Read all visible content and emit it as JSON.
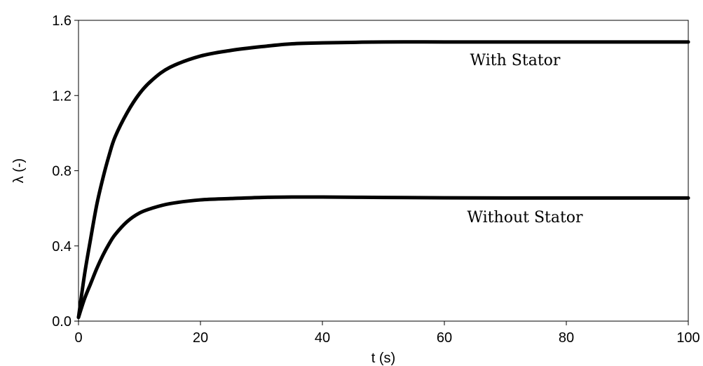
{
  "chart_data": {
    "type": "line",
    "xlabel": "t (s)",
    "ylabel": "λ (-)",
    "xlim": [
      0,
      100
    ],
    "ylim": [
      0.0,
      1.6
    ],
    "x_ticks": [
      0,
      20,
      40,
      60,
      80,
      100
    ],
    "x_tick_labels": [
      "0",
      "20",
      "40",
      "60",
      "80",
      "100"
    ],
    "y_ticks": [
      0.0,
      0.4,
      0.8,
      1.2,
      1.6
    ],
    "y_tick_labels": [
      "0.0",
      "0.4",
      "0.8",
      "1.2",
      "1.6"
    ],
    "grid": false,
    "legend": "none",
    "series": [
      {
        "name": "With Stator",
        "color": "#000000",
        "x": [
          0,
          1,
          2,
          3,
          4,
          5,
          6,
          8,
          10,
          12,
          15,
          20,
          25,
          30,
          35,
          40,
          50,
          60,
          70,
          80,
          90,
          100
        ],
        "y": [
          0.02,
          0.25,
          0.44,
          0.62,
          0.76,
          0.88,
          0.98,
          1.11,
          1.21,
          1.28,
          1.35,
          1.41,
          1.44,
          1.46,
          1.475,
          1.48,
          1.485,
          1.485,
          1.485,
          1.485,
          1.485,
          1.485
        ]
      },
      {
        "name": "Without Stator",
        "color": "#000000",
        "x": [
          0,
          1,
          2,
          3,
          4,
          5,
          6,
          8,
          10,
          12,
          15,
          20,
          25,
          30,
          35,
          40,
          50,
          60,
          70,
          80,
          90,
          100
        ],
        "y": [
          0.02,
          0.12,
          0.2,
          0.28,
          0.35,
          0.41,
          0.46,
          0.53,
          0.575,
          0.6,
          0.625,
          0.645,
          0.652,
          0.658,
          0.66,
          0.66,
          0.658,
          0.656,
          0.655,
          0.655,
          0.655,
          0.655
        ]
      }
    ],
    "annotations": [
      {
        "text": "With Stator",
        "series": 0
      },
      {
        "text": "Without Stator",
        "series": 1
      }
    ]
  }
}
